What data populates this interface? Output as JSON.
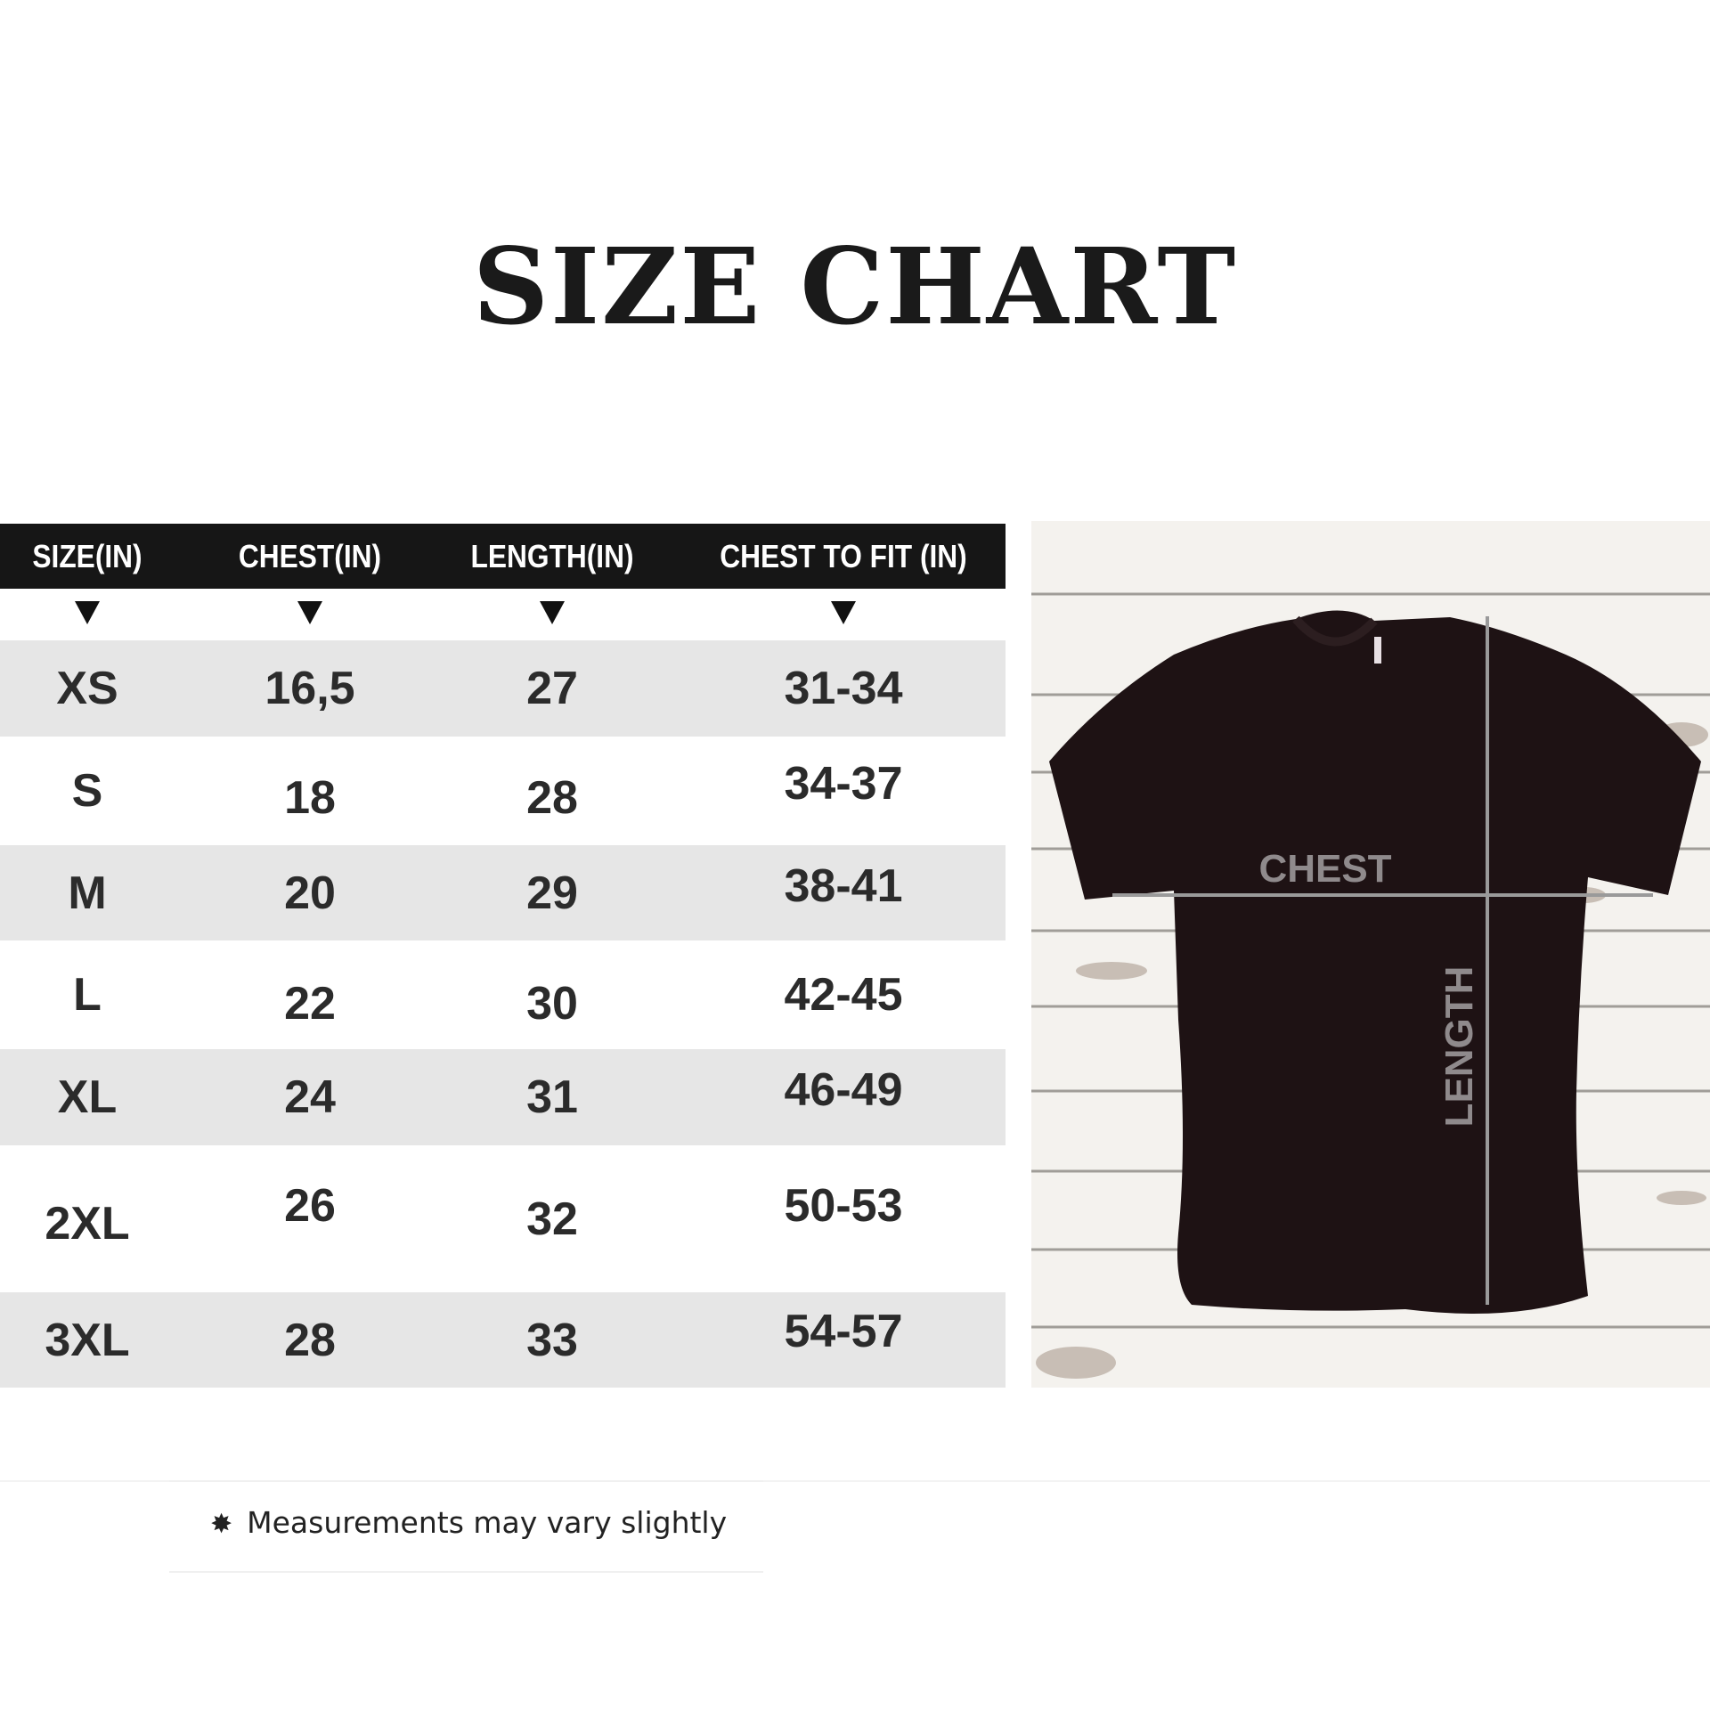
{
  "title": "SIZE CHART",
  "table": {
    "headers": [
      "SIZE(IN)",
      "CHEST(IN)",
      "LENGTH(IN)",
      "CHEST TO FIT (IN)"
    ],
    "rows": [
      [
        "XS",
        "16,5",
        "27",
        "31-34"
      ],
      [
        "S",
        "18",
        "28",
        "34-37"
      ],
      [
        "M",
        "20",
        "29",
        "38-41"
      ],
      [
        "L",
        "22",
        "30",
        "42-45"
      ],
      [
        "XL",
        "24",
        "31",
        "46-49"
      ],
      [
        "2XL",
        "26",
        "32",
        "50-53"
      ],
      [
        "3XL",
        "28",
        "33",
        "54-57"
      ]
    ]
  },
  "diagram": {
    "chest_label": "CHEST",
    "length_label": "LENGTH",
    "shirt_color": "#1e1214",
    "line_color": "#9a9a9a"
  },
  "footnote": {
    "icon": "asterisk-icon",
    "text": "Measurements may vary slightly"
  }
}
